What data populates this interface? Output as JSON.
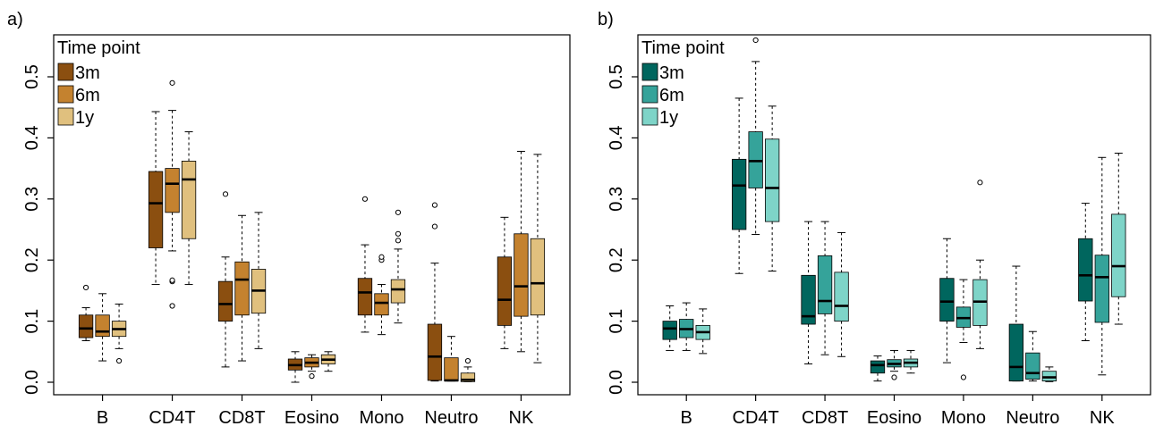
{
  "chart_data": [
    {
      "type": "box",
      "panel_label": "a)",
      "legend": {
        "title": "Time point",
        "position": "top-left",
        "entries": [
          "3m",
          "6m",
          "1y"
        ]
      },
      "colors": [
        "#8B4F10",
        "#C4822F",
        "#E0C07E"
      ],
      "ylim": [
        0,
        0.55
      ],
      "yticks": [
        "0.0",
        "0.1",
        "0.2",
        "0.3",
        "0.4",
        "0.5"
      ],
      "ytick_values": [
        0,
        0.1,
        0.2,
        0.3,
        0.4,
        0.5
      ],
      "categories": [
        "B",
        "CD4T",
        "CD8T",
        "Eosino",
        "Mono",
        "Neutro",
        "NK"
      ],
      "series": [
        {
          "name": "3m",
          "boxes": [
            {
              "min": 0.068,
              "q1": 0.073,
              "median": 0.088,
              "q3": 0.11,
              "max": 0.122,
              "outliers": [
                0.155
              ]
            },
            {
              "min": 0.16,
              "q1": 0.22,
              "median": 0.293,
              "q3": 0.345,
              "max": 0.443,
              "outliers": []
            },
            {
              "min": 0.025,
              "q1": 0.1,
              "median": 0.128,
              "q3": 0.165,
              "max": 0.205,
              "outliers": [
                0.308
              ]
            },
            {
              "min": 0.0,
              "q1": 0.02,
              "median": 0.028,
              "q3": 0.038,
              "max": 0.05,
              "outliers": []
            },
            {
              "min": 0.082,
              "q1": 0.11,
              "median": 0.147,
              "q3": 0.17,
              "max": 0.225,
              "outliers": [
                0.3
              ]
            },
            {
              "min": 0.002,
              "q1": 0.003,
              "median": 0.042,
              "q3": 0.095,
              "max": 0.195,
              "outliers": [
                0.255,
                0.29
              ]
            },
            {
              "min": 0.055,
              "q1": 0.093,
              "median": 0.135,
              "q3": 0.205,
              "max": 0.27,
              "outliers": []
            }
          ]
        },
        {
          "name": "6m",
          "boxes": [
            {
              "min": 0.035,
              "q1": 0.075,
              "median": 0.083,
              "q3": 0.11,
              "max": 0.145,
              "outliers": []
            },
            {
              "min": 0.215,
              "q1": 0.278,
              "median": 0.325,
              "q3": 0.35,
              "max": 0.445,
              "outliers": [
                0.125,
                0.165,
                0.167,
                0.49
              ]
            },
            {
              "min": 0.035,
              "q1": 0.11,
              "median": 0.168,
              "q3": 0.197,
              "max": 0.273,
              "outliers": []
            },
            {
              "min": 0.018,
              "q1": 0.025,
              "median": 0.032,
              "q3": 0.04,
              "max": 0.045,
              "outliers": [
                0.01
              ]
            },
            {
              "min": 0.078,
              "q1": 0.11,
              "median": 0.13,
              "q3": 0.145,
              "max": 0.16,
              "outliers": [
                0.2,
                0.205
              ]
            },
            {
              "min": 0.002,
              "q1": 0.002,
              "median": 0.003,
              "q3": 0.04,
              "max": 0.075,
              "outliers": []
            },
            {
              "min": 0.05,
              "q1": 0.108,
              "median": 0.157,
              "q3": 0.243,
              "max": 0.378,
              "outliers": []
            }
          ]
        },
        {
          "name": "1y",
          "boxes": [
            {
              "min": 0.055,
              "q1": 0.075,
              "median": 0.087,
              "q3": 0.1,
              "max": 0.128,
              "outliers": [
                0.035
              ]
            },
            {
              "min": 0.16,
              "q1": 0.235,
              "median": 0.332,
              "q3": 0.362,
              "max": 0.41,
              "outliers": []
            },
            {
              "min": 0.055,
              "q1": 0.113,
              "median": 0.15,
              "q3": 0.185,
              "max": 0.278,
              "outliers": []
            },
            {
              "min": 0.018,
              "q1": 0.03,
              "median": 0.037,
              "q3": 0.045,
              "max": 0.05,
              "outliers": []
            },
            {
              "min": 0.097,
              "q1": 0.13,
              "median": 0.152,
              "q3": 0.168,
              "max": 0.218,
              "outliers": [
                0.232,
                0.243,
                0.278
              ]
            },
            {
              "min": 0.001,
              "q1": 0.001,
              "median": 0.004,
              "q3": 0.015,
              "max": 0.025,
              "outliers": [
                0.035
              ]
            },
            {
              "min": 0.032,
              "q1": 0.11,
              "median": 0.162,
              "q3": 0.235,
              "max": 0.373,
              "outliers": []
            }
          ]
        }
      ]
    },
    {
      "type": "box",
      "panel_label": "b)",
      "legend": {
        "title": "Time point",
        "position": "top-left",
        "entries": [
          "3m",
          "6m",
          "1y"
        ]
      },
      "colors": [
        "#00665E",
        "#35A39A",
        "#7ED4C8"
      ],
      "ylim": [
        0,
        0.55
      ],
      "yticks": [
        "0.0",
        "0.1",
        "0.2",
        "0.3",
        "0.4",
        "0.5"
      ],
      "ytick_values": [
        0,
        0.1,
        0.2,
        0.3,
        0.4,
        0.5
      ],
      "categories": [
        "B",
        "CD4T",
        "CD8T",
        "Eosino",
        "Mono",
        "Neutro",
        "NK"
      ],
      "series": [
        {
          "name": "3m",
          "boxes": [
            {
              "min": 0.052,
              "q1": 0.07,
              "median": 0.088,
              "q3": 0.1,
              "max": 0.125,
              "outliers": []
            },
            {
              "min": 0.178,
              "q1": 0.25,
              "median": 0.322,
              "q3": 0.365,
              "max": 0.465,
              "outliers": []
            },
            {
              "min": 0.03,
              "q1": 0.095,
              "median": 0.108,
              "q3": 0.175,
              "max": 0.263,
              "outliers": []
            },
            {
              "min": 0.002,
              "q1": 0.015,
              "median": 0.028,
              "q3": 0.035,
              "max": 0.043,
              "outliers": []
            },
            {
              "min": 0.032,
              "q1": 0.1,
              "median": 0.132,
              "q3": 0.17,
              "max": 0.235,
              "outliers": []
            },
            {
              "min": 0.002,
              "q1": 0.002,
              "median": 0.025,
              "q3": 0.095,
              "max": 0.19,
              "outliers": []
            },
            {
              "min": 0.068,
              "q1": 0.133,
              "median": 0.175,
              "q3": 0.235,
              "max": 0.293,
              "outliers": []
            }
          ]
        },
        {
          "name": "6m",
          "boxes": [
            {
              "min": 0.052,
              "q1": 0.073,
              "median": 0.087,
              "q3": 0.103,
              "max": 0.13,
              "outliers": []
            },
            {
              "min": 0.242,
              "q1": 0.318,
              "median": 0.362,
              "q3": 0.41,
              "max": 0.525,
              "outliers": [
                0.56
              ]
            },
            {
              "min": 0.045,
              "q1": 0.112,
              "median": 0.133,
              "q3": 0.207,
              "max": 0.263,
              "outliers": []
            },
            {
              "min": 0.018,
              "q1": 0.025,
              "median": 0.03,
              "q3": 0.037,
              "max": 0.052,
              "outliers": [
                0.008
              ]
            },
            {
              "min": 0.065,
              "q1": 0.09,
              "median": 0.105,
              "q3": 0.123,
              "max": 0.168,
              "outliers": [
                0.008
              ]
            },
            {
              "min": 0.002,
              "q1": 0.005,
              "median": 0.015,
              "q3": 0.048,
              "max": 0.083,
              "outliers": []
            },
            {
              "min": 0.012,
              "q1": 0.098,
              "median": 0.172,
              "q3": 0.208,
              "max": 0.368,
              "outliers": []
            }
          ]
        },
        {
          "name": "1y",
          "boxes": [
            {
              "min": 0.047,
              "q1": 0.07,
              "median": 0.082,
              "q3": 0.093,
              "max": 0.12,
              "outliers": []
            },
            {
              "min": 0.182,
              "q1": 0.263,
              "median": 0.318,
              "q3": 0.398,
              "max": 0.452,
              "outliers": []
            },
            {
              "min": 0.042,
              "q1": 0.1,
              "median": 0.125,
              "q3": 0.18,
              "max": 0.245,
              "outliers": []
            },
            {
              "min": 0.015,
              "q1": 0.025,
              "median": 0.032,
              "q3": 0.038,
              "max": 0.052,
              "outliers": []
            },
            {
              "min": 0.055,
              "q1": 0.093,
              "median": 0.132,
              "q3": 0.168,
              "max": 0.2,
              "outliers": [
                0.327
              ]
            },
            {
              "min": 0.001,
              "q1": 0.002,
              "median": 0.008,
              "q3": 0.018,
              "max": 0.025,
              "outliers": []
            },
            {
              "min": 0.095,
              "q1": 0.14,
              "median": 0.19,
              "q3": 0.275,
              "max": 0.375,
              "outliers": []
            }
          ]
        }
      ]
    }
  ]
}
